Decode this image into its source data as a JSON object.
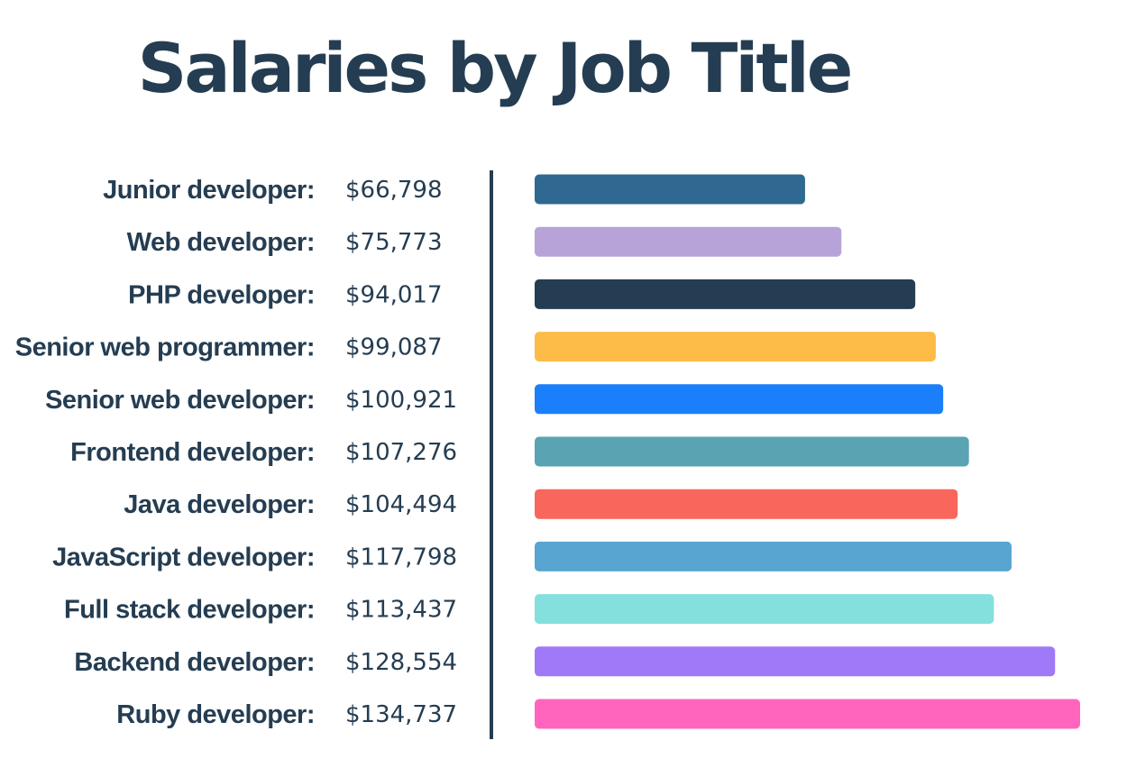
{
  "chart_data": {
    "type": "bar",
    "orientation": "horizontal",
    "title": "Salaries by Job Title",
    "categories": [
      "Junior developer:",
      "Web developer:",
      "PHP developer:",
      "Senior web programmer:",
      "Senior web developer:",
      "Frontend developer:",
      "Java developer:",
      "JavaScript developer:",
      "Full stack developer:",
      "Backend developer:",
      "Ruby developer:"
    ],
    "values": [
      66798,
      75773,
      94017,
      99087,
      100921,
      107276,
      104494,
      117798,
      113437,
      128554,
      134737
    ],
    "value_labels": [
      "$66,798",
      "$75,773",
      "$94,017",
      "$99,087",
      "$100,921",
      "$107,276",
      "$104,494",
      "$117,798",
      "$113,437",
      "$128,554",
      "$134,737"
    ],
    "colors": [
      "#2f6890",
      "#b8a3d9",
      "#253d52",
      "#fdbc48",
      "#1b7ffb",
      "#5aa3b3",
      "#f8665c",
      "#57a5d0",
      "#84e0dc",
      "#a079f8",
      "#ff65bd"
    ],
    "xlim": [
      0,
      134737
    ],
    "grid": false,
    "legend": false,
    "axis_color": "#253d52"
  }
}
